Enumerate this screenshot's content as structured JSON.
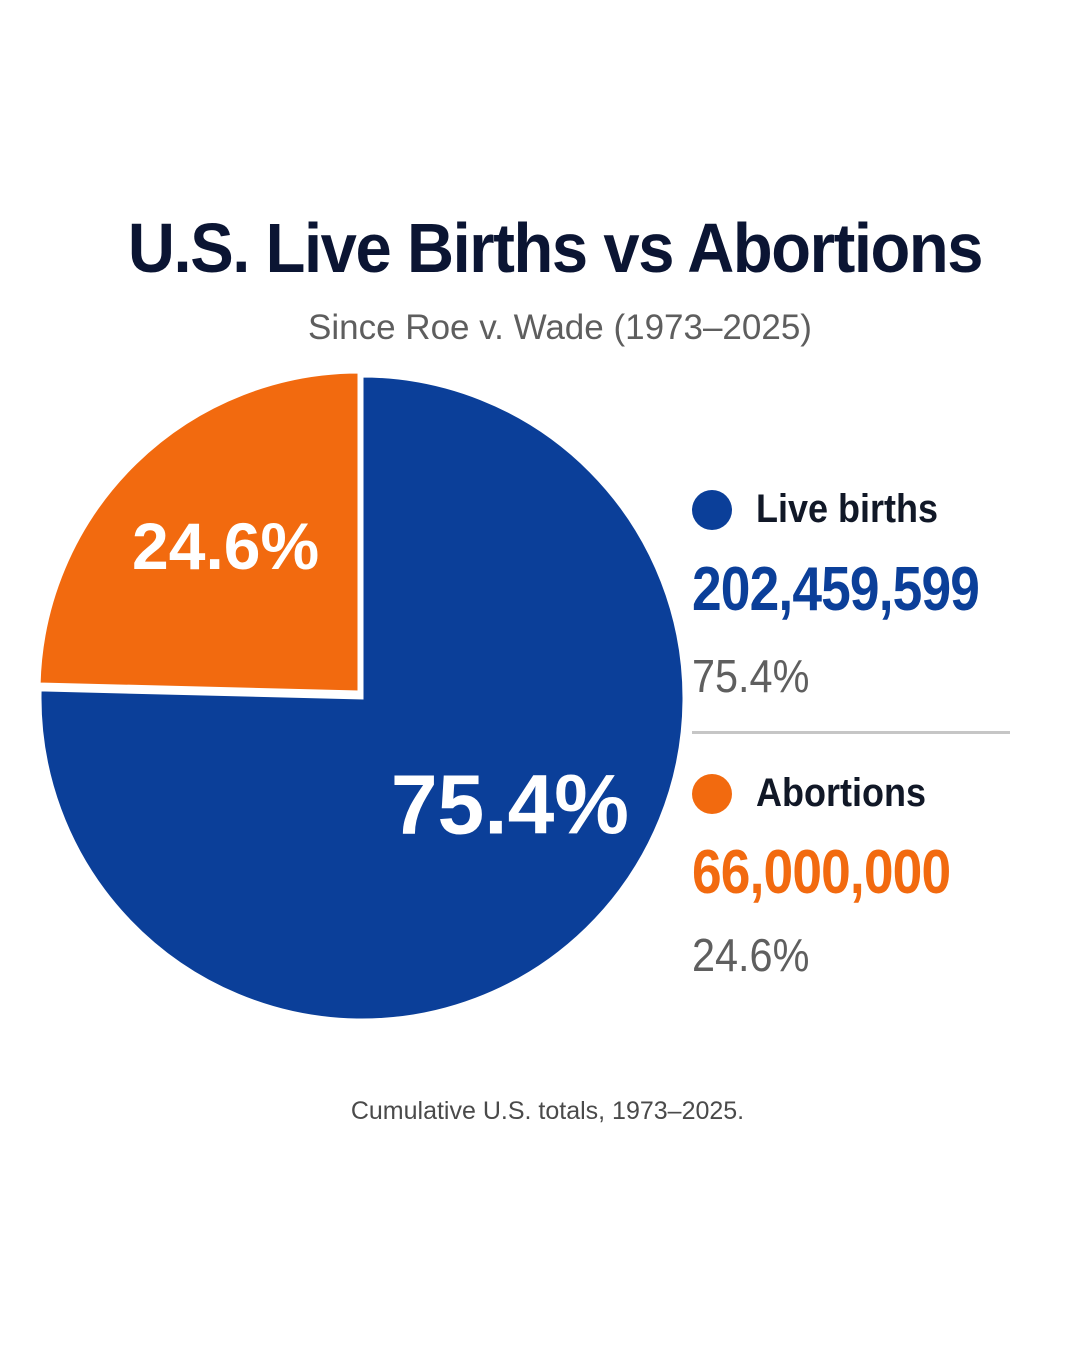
{
  "chart_data": {
    "type": "pie",
    "title": "U.S. Live Births vs Abortions",
    "subtitle": "Since Roe v. Wade (1973–2025)",
    "slices": [
      {
        "label": "Live births",
        "value": 202459599,
        "value_label": "202,459,599",
        "percent": 75.4,
        "percent_label": "75.4%",
        "color": "#0b3f99"
      },
      {
        "label": "Abortions",
        "value": 66000000,
        "value_label": "66,000,000",
        "percent": 24.6,
        "percent_label": "24.6%",
        "color": "#f26a0f"
      }
    ],
    "legend_placement": "right",
    "footnote": "Cumulative U.S. totals, 1973–2025."
  },
  "colors": {
    "title": "#0b1533",
    "subtitle": "#5e5e5e",
    "births": "#0b3f99",
    "abortions": "#f26a0f",
    "divider": "#c6c6c6"
  }
}
